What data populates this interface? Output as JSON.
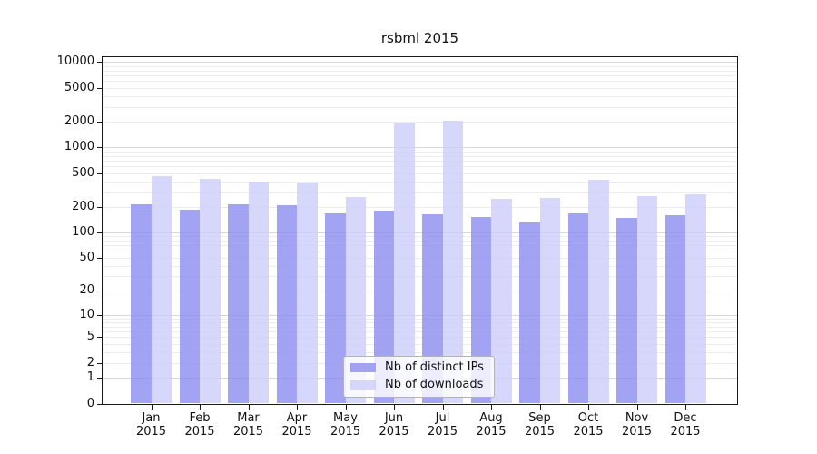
{
  "title": "rsbml 2015",
  "colors": {
    "ips_bar": "#8c8cf0",
    "downloads_bar": "#cdcdfa",
    "bar_alpha": 0.8,
    "grid_major": "#d8d8d8",
    "grid_minor": "#ededed",
    "spine": "#1a1a1a",
    "background": "#ffffff",
    "legend_border": "#b3b3b3"
  },
  "chart_data": {
    "type": "bar",
    "title": "rsbml 2015",
    "categories": [
      "Jan 2015",
      "Feb 2015",
      "Mar 2015",
      "Apr 2015",
      "May 2015",
      "Jun 2015",
      "Jul 2015",
      "Aug 2015",
      "Sep 2015",
      "Oct 2015",
      "Nov 2015",
      "Dec 2015"
    ],
    "series": [
      {
        "name": "Nb of distinct IPs",
        "color": "#8c8cf0",
        "values": [
          215,
          186,
          216,
          211,
          167,
          182,
          164,
          151,
          132,
          168,
          148,
          161
        ]
      },
      {
        "name": "Nb of downloads",
        "color": "#cdcdfa",
        "values": [
          460,
          428,
          400,
          393,
          260,
          1900,
          2050,
          248,
          254,
          421,
          270,
          285
        ]
      }
    ],
    "yticks": [
      0,
      1,
      2,
      5,
      10,
      20,
      50,
      100,
      200,
      500,
      1000,
      2000,
      5000,
      10000
    ],
    "yscale": "log10(x+1)",
    "ylim": [
      0,
      12300
    ],
    "xlabel": "",
    "ylabel": "",
    "grid": {
      "horizontal": true,
      "minor_log_lines": true
    },
    "legend_position": "inside-bottom-center"
  }
}
